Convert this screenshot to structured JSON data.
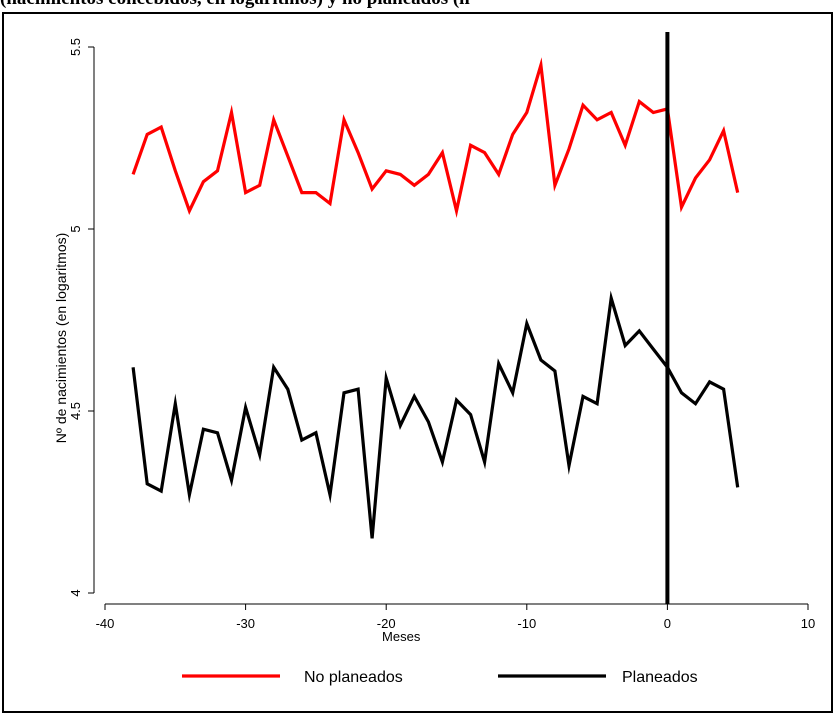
{
  "caption": "(nacimientos concebidos, en logaritmos) y no planeados (lí",
  "chart_data": {
    "type": "line",
    "xlabel": "Meses",
    "ylabel": "Nº de nacimientos (en logaritmos)",
    "xlim": [
      -40,
      10
    ],
    "ylim": [
      4,
      5.5
    ],
    "xticks": [
      -40,
      -30,
      -20,
      -10,
      0,
      10
    ],
    "yticks": [
      4,
      4.5,
      5,
      5.5
    ],
    "xtick_labels": [
      "-40",
      "-30",
      "-20",
      "-10",
      "0",
      "10"
    ],
    "ytick_labels": [
      "4",
      "4.5",
      "5",
      "5.5"
    ],
    "vline_x": 0,
    "legend_position": "bottom",
    "x": [
      -38,
      -37,
      -36,
      -35,
      -34,
      -33,
      -32,
      -31,
      -30,
      -29,
      -28,
      -27,
      -26,
      -25,
      -24,
      -23,
      -22,
      -21,
      -20,
      -19,
      -18,
      -17,
      -16,
      -15,
      -14,
      -13,
      -12,
      -11,
      -10,
      -9,
      -8,
      -7,
      -6,
      -5,
      -4,
      -3,
      -2,
      -1,
      0,
      1,
      2,
      3,
      4,
      5
    ],
    "series": [
      {
        "name": "No planeados",
        "color": "#ff0000",
        "values": [
          5.15,
          5.26,
          5.28,
          5.16,
          5.05,
          5.13,
          5.16,
          5.32,
          5.1,
          5.12,
          5.3,
          5.2,
          5.1,
          5.1,
          5.07,
          5.3,
          5.21,
          5.11,
          5.16,
          5.15,
          5.12,
          5.15,
          5.21,
          5.05,
          5.23,
          5.21,
          5.15,
          5.26,
          5.32,
          5.45,
          5.12,
          5.22,
          5.34,
          5.3,
          5.32,
          5.23,
          5.35,
          5.32,
          5.33,
          5.06,
          5.14,
          5.19,
          5.27,
          5.1
        ]
      },
      {
        "name": "Planeados",
        "color": "#000000",
        "values": [
          4.62,
          4.3,
          4.28,
          4.52,
          4.27,
          4.45,
          4.44,
          4.31,
          4.51,
          4.38,
          4.62,
          4.56,
          4.42,
          4.44,
          4.27,
          4.55,
          4.56,
          4.15,
          4.59,
          4.46,
          4.54,
          4.47,
          4.36,
          4.53,
          4.49,
          4.36,
          4.63,
          4.55,
          4.74,
          4.64,
          4.61,
          4.35,
          4.54,
          4.52,
          4.81,
          4.68,
          4.72,
          4.67,
          4.62,
          4.55,
          4.52,
          4.58,
          4.56,
          4.29
        ]
      }
    ]
  }
}
